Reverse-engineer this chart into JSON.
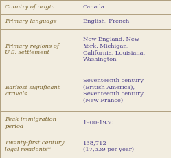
{
  "rows": [
    {
      "label": "Country of origin",
      "value": "Canada",
      "label_color": "#7B6530",
      "value_color": "#4B3F8A"
    },
    {
      "label": "Primary language",
      "value": "English, French",
      "label_color": "#7B6530",
      "value_color": "#4B3F8A"
    },
    {
      "label": "Primary regions of\nU.S. settlement",
      "value": "New England, New\nYork, Michigan,\nCalifornia, Louisiana,\nWashington",
      "label_color": "#7B6530",
      "value_color": "#4B3F8A"
    },
    {
      "label": "Earliest significant\narrivals",
      "value": "Seventeenth century\n(British America),\nSeventeenth century\n(New France)",
      "label_color": "#7B6530",
      "value_color": "#4B3F8A"
    },
    {
      "label": "Peak immigration\nperiod",
      "value": "1900-1930",
      "label_color": "#7B6530",
      "value_color": "#4B3F8A"
    },
    {
      "label": "Twenty-first century\nlegal residents*",
      "value": "138,712\n(17,339 per year)",
      "label_color": "#7B6530",
      "value_color": "#4B3F8A"
    }
  ],
  "background_color": "#F2EDE0",
  "line_color": "#B0A080",
  "font_size": 6.0,
  "col_split": 0.455,
  "fig_width": 2.49,
  "fig_height": 2.29,
  "dpi": 100
}
